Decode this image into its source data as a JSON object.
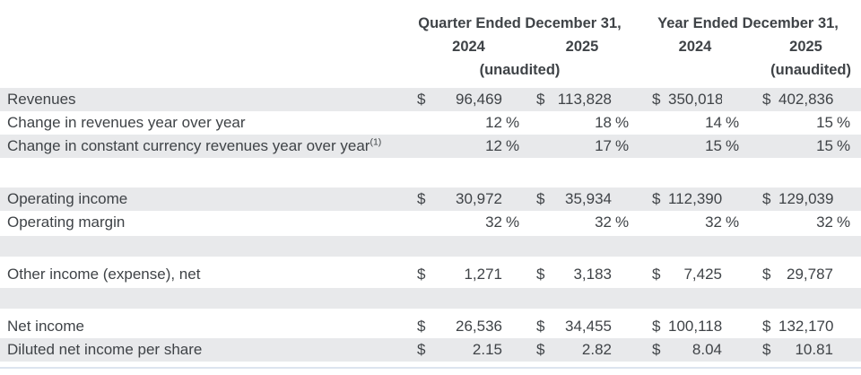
{
  "header": {
    "groups": [
      {
        "title": "Quarter Ended December 31,",
        "year_left": "2024",
        "year_right": "2025",
        "unaudited": "(unaudited)"
      },
      {
        "title": "Year Ended December 31,",
        "year_left": "2024",
        "year_right": "2025",
        "unaudited": "(unaudited)"
      }
    ]
  },
  "currency_symbol": "$",
  "percent_symbol": "%",
  "rows": [
    {
      "kind": "data",
      "label": "Revenues",
      "type": "dollar",
      "shaded": true,
      "values": [
        "96,469",
        "113,828",
        "350,018",
        "402,836"
      ]
    },
    {
      "kind": "data",
      "label": "Change in revenues year over year",
      "type": "percent",
      "shaded": false,
      "values": [
        "12",
        "18",
        "14",
        "15"
      ]
    },
    {
      "kind": "data",
      "label": "Change in constant currency revenues year over year",
      "footnote": "(1)",
      "type": "percent",
      "shaded": true,
      "values": [
        "12",
        "17",
        "15",
        "15"
      ]
    },
    {
      "kind": "spacer",
      "variant": "white-lg"
    },
    {
      "kind": "data",
      "label": "Operating income",
      "type": "dollar",
      "shaded": true,
      "values": [
        "30,972",
        "35,934",
        "112,390",
        "129,039"
      ]
    },
    {
      "kind": "data",
      "label": "Operating margin",
      "type": "percent",
      "shaded": false,
      "values": [
        "32",
        "32",
        "32",
        "32"
      ]
    },
    {
      "kind": "spacer",
      "variant": "gray-band"
    },
    {
      "kind": "data",
      "label": "Other income (expense), net",
      "type": "dollar",
      "shaded": false,
      "values": [
        "1,271",
        "3,183",
        "7,425",
        "29,787"
      ]
    },
    {
      "kind": "spacer",
      "variant": "gray-band"
    },
    {
      "kind": "data",
      "label": "Net income",
      "type": "dollar",
      "shaded": false,
      "values": [
        "26,536",
        "34,455",
        "100,118",
        "132,170"
      ]
    },
    {
      "kind": "data",
      "label": "Diluted net income per share",
      "type": "dollar",
      "shaded": true,
      "values": [
        "2.15",
        "2.82",
        "8.04",
        "10.81"
      ]
    }
  ],
  "colors": {
    "row_shade": "#e8e9eb",
    "text_color": "#3f4347",
    "bottom_rule": "#dde4ef"
  }
}
